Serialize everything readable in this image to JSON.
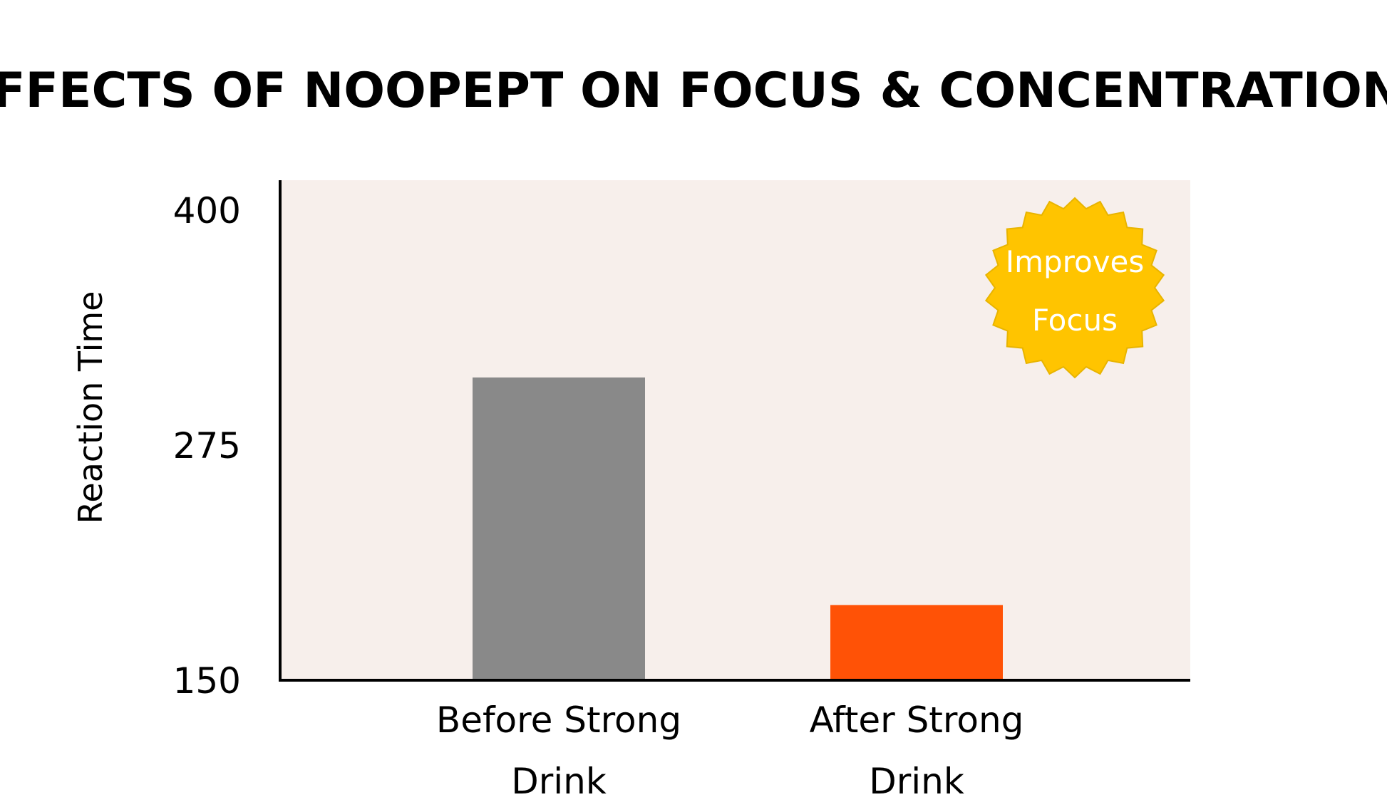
{
  "chart_data": {
    "type": "bar",
    "title": "EFFECTS OF NOOPEPT ON FOCUS & CONCENTRATION*",
    "xlabel": "",
    "ylabel": "Reaction Time",
    "ylim": [
      150,
      400
    ],
    "yticks": [
      "400",
      "275",
      "150"
    ],
    "yticks_values": [
      400,
      275,
      150
    ],
    "categories": [
      [
        "Before Strong",
        "Drink"
      ],
      [
        "After Strong",
        "Drink"
      ]
    ],
    "values": [
      311,
      190
    ],
    "bar_colors": [
      "#898989",
      "#ff5206"
    ],
    "plot_background": "#f7efeb",
    "grid": false,
    "legend": "none",
    "badge": {
      "lines": [
        "Improves",
        "Focus"
      ],
      "color": "#ffc400",
      "text_color": "#ffffff"
    }
  }
}
